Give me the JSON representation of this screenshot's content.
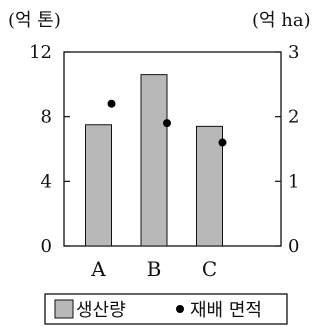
{
  "chart_data": {
    "type": "bar",
    "categories": [
      "A",
      "B",
      "C"
    ],
    "series": [
      {
        "name": "생산량",
        "type": "bar",
        "axis": "left",
        "color": "#b8b8b8",
        "values": [
          7.5,
          10.6,
          7.4
        ]
      },
      {
        "name": "재배 면적",
        "type": "scatter",
        "axis": "right",
        "color": "#000000",
        "values": [
          2.2,
          1.9,
          1.6
        ]
      }
    ],
    "left_axis": {
      "unit_label": "(억 톤)",
      "ylim": [
        0,
        12
      ],
      "ticks": [
        0,
        4,
        8,
        12
      ]
    },
    "right_axis": {
      "unit_label": "(억 ha)",
      "ylim": [
        0,
        3
      ],
      "ticks": [
        0,
        1,
        2,
        3
      ]
    },
    "grid": false,
    "legend": {
      "placement": "bottom",
      "items": [
        {
          "symbol": "square",
          "label": "생산량"
        },
        {
          "symbol": "dot",
          "label": "재배 면적"
        }
      ]
    }
  }
}
